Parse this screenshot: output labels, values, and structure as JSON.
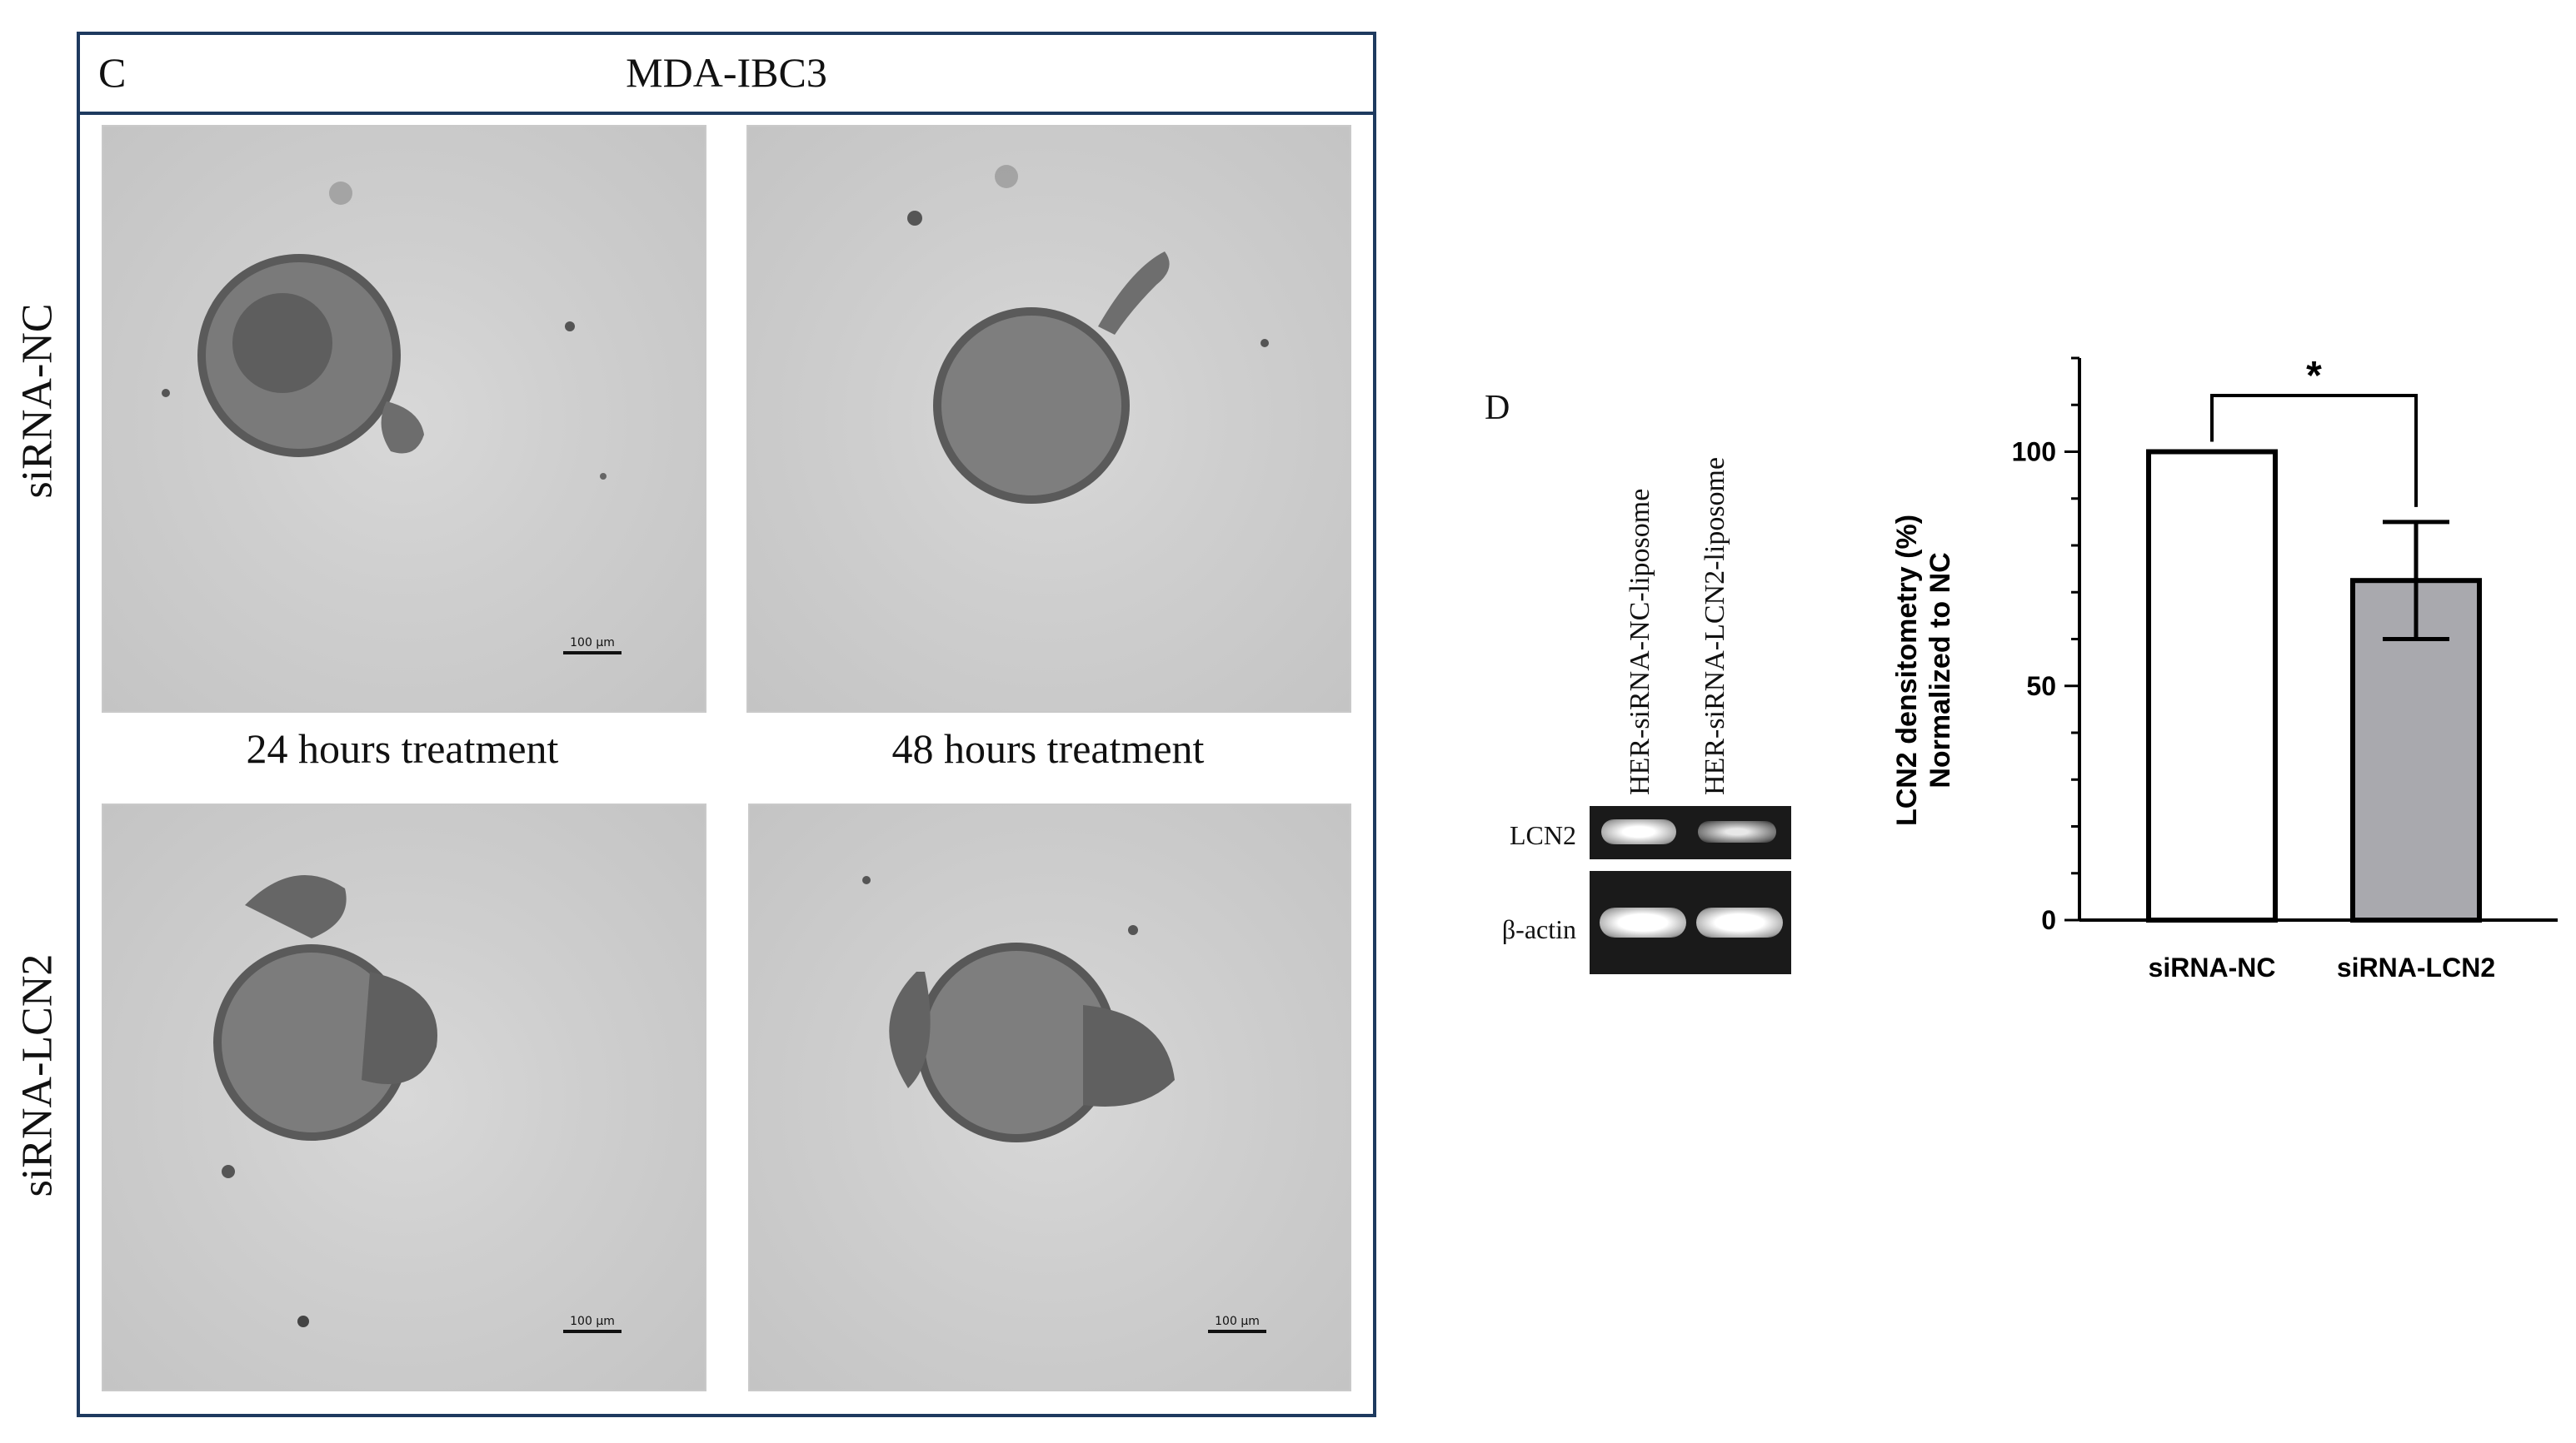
{
  "panel_c": {
    "letter": "C",
    "title": "MDA-IBC3",
    "row_labels": [
      "siRNA-NC",
      "siRNA-LCN2"
    ],
    "time_labels": [
      "24 hours treatment",
      "48 hours treatment"
    ],
    "scale_bar_label": "100 µm"
  },
  "panel_d": {
    "letter": "D",
    "lanes": [
      "HER-siRNA-NC-liposome",
      "HER-siRNA-LCN2-liposome"
    ],
    "blot_rows": [
      "LCN2",
      "β-actin"
    ]
  },
  "chart_data": {
    "type": "bar",
    "categories": [
      "siRNA-NC",
      "siRNA-LCN2"
    ],
    "values": [
      100,
      72.5
    ],
    "error": [
      0,
      12.5
    ],
    "ylabel_line1": "LCN2 densitometry (%)",
    "ylabel_line2": "Normalized to NC",
    "ylim": [
      0,
      120
    ],
    "yticks": [
      0,
      50,
      100
    ],
    "significance": "*",
    "bar_colors": [
      "#ffffff",
      "#a9a9ae"
    ]
  }
}
